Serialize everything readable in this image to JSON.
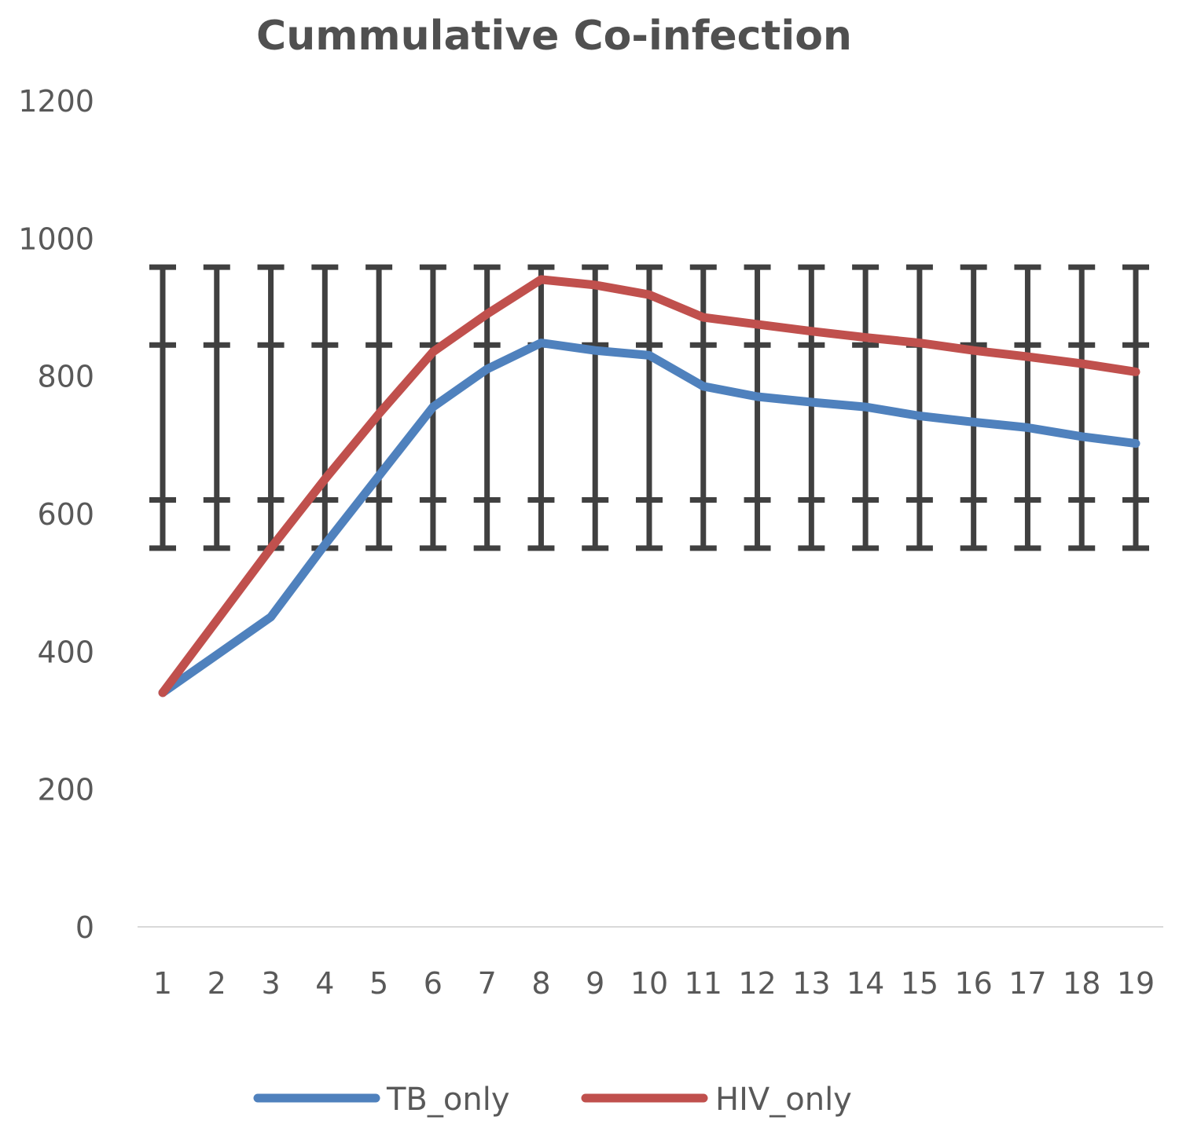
{
  "chart_data": {
    "type": "line",
    "title": "Cummulative Co-infection",
    "xlabel": "",
    "ylabel": "",
    "categories": [
      "1",
      "2",
      "3",
      "4",
      "5",
      "6",
      "7",
      "8",
      "9",
      "10",
      "11",
      "12",
      "13",
      "14",
      "15",
      "16",
      "17",
      "18",
      "19"
    ],
    "ylim": [
      0,
      1200
    ],
    "yticks": [
      0,
      200,
      400,
      600,
      800,
      1000,
      1200
    ],
    "grid": false,
    "legend_position": "bottom",
    "series": [
      {
        "name": "TB_only",
        "color": "#4F81BD",
        "values": [
          340,
          395,
          450,
          555,
          655,
          755,
          810,
          848,
          837,
          830,
          785,
          770,
          762,
          755,
          742,
          733,
          725,
          712,
          702
        ]
      },
      {
        "name": "HIV_only",
        "color": "#C0504D",
        "values": [
          340,
          445,
          550,
          650,
          745,
          835,
          890,
          940,
          932,
          918,
          885,
          875,
          865,
          856,
          848,
          837,
          828,
          818,
          806
        ]
      }
    ],
    "error_bars": {
      "color": "#404040",
      "low": 550,
      "high": 958,
      "ticks": [
        550,
        620,
        845,
        958
      ]
    }
  }
}
